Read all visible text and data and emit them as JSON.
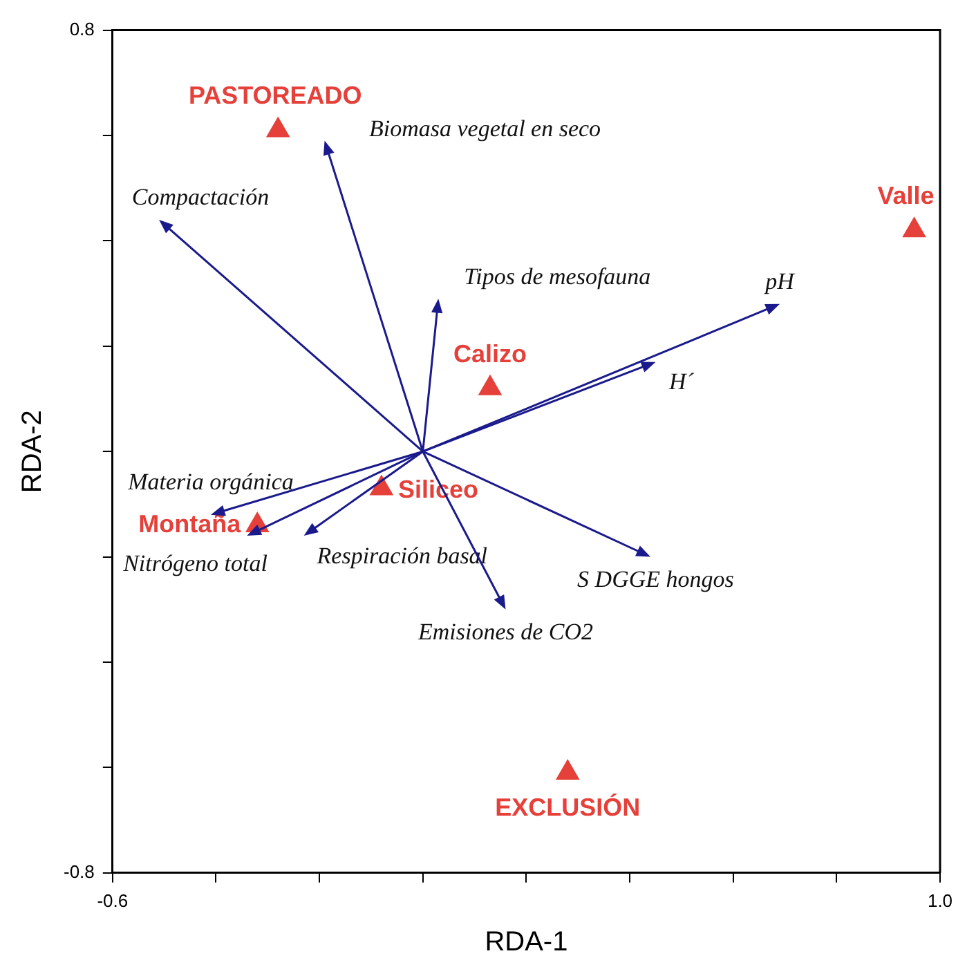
{
  "chart_data": {
    "type": "scatter",
    "xlabel": "RDA-1",
    "ylabel": "RDA-2",
    "xlim": [
      -0.6,
      1.0
    ],
    "ylim": [
      -0.8,
      0.8
    ],
    "xticks": [
      -0.6,
      {
        "value": -0.4,
        "label": null
      },
      {
        "value": -0.2,
        "label": null
      },
      {
        "value": 0,
        "label": null
      },
      {
        "value": 0.2,
        "label": null
      },
      {
        "value": 0.4,
        "label": null
      },
      {
        "value": 0.6,
        "label": null
      },
      {
        "value": 0.8,
        "label": null
      },
      {
        "value": 1.0,
        "label": "1.0"
      }
    ],
    "yticks": [
      -0.8,
      {
        "value": -0.6,
        "label": null
      },
      {
        "value": -0.4,
        "label": null
      },
      {
        "value": -0.2,
        "label": null
      },
      {
        "value": 0,
        "label": null
      },
      {
        "value": 0.2,
        "label": null
      },
      {
        "value": 0.4,
        "label": null
      },
      {
        "value": 0.6,
        "label": null
      },
      0.8
    ],
    "grid": false,
    "marker": "triangle",
    "series": [
      {
        "name": "PASTOREADO",
        "x": [
          -0.28
        ],
        "values": [
          0.61
        ],
        "color": "#e5403a"
      },
      {
        "name": "Valle",
        "x": [
          0.95
        ],
        "values": [
          0.42
        ],
        "color": "#e5403a"
      },
      {
        "name": "Calizo",
        "x": [
          0.13
        ],
        "values": [
          0.12
        ],
        "color": "#e5403a"
      },
      {
        "name": "Siliceo",
        "x": [
          -0.08
        ],
        "values": [
          -0.07
        ],
        "color": "#e5403a"
      },
      {
        "name": "Montaña",
        "x": [
          -0.32
        ],
        "values": [
          -0.14
        ],
        "color": "#e5403a"
      },
      {
        "name": "EXCLUSIÓN",
        "x": [
          0.28
        ],
        "values": [
          -0.61
        ],
        "color": "#e5403a"
      }
    ],
    "annotations": [
      "Biomasa vegetal en seco",
      "Compactación",
      "Tipos de mesofauna",
      "pH",
      "H´",
      "Materia orgánica",
      "Nitrógeno total",
      "Respiración basal",
      "S DGGE hongos",
      "Emisiones de CO2"
    ]
  }
}
